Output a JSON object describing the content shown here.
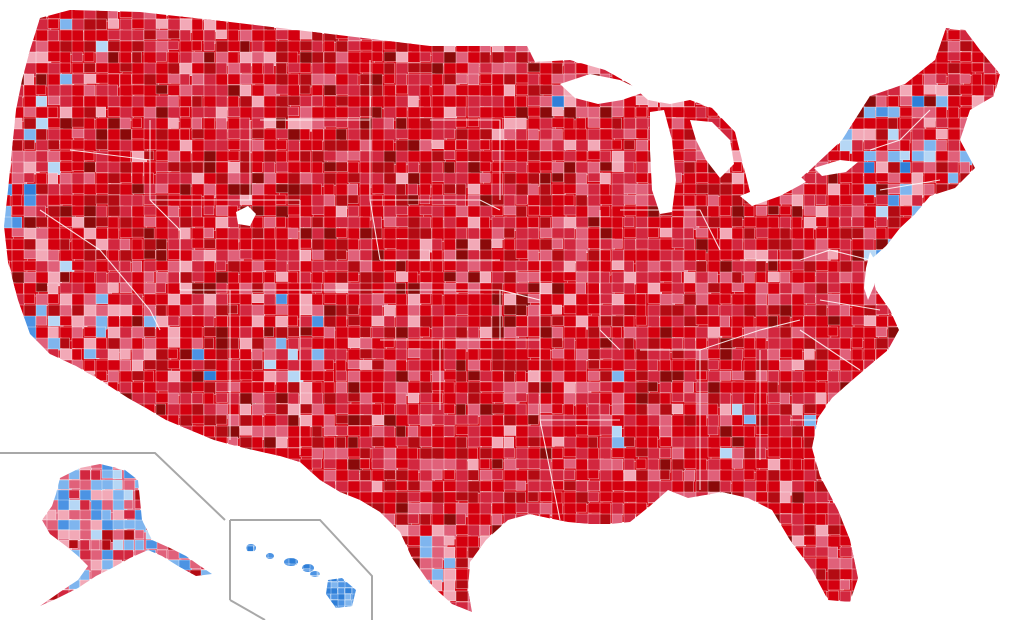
{
  "legend_colors": {
    "red_darkest": "#8a0a0a",
    "red_dark": "#b30b13",
    "red": "#d4000f",
    "red_medium": "#d2273f",
    "red_light": "#e0617a",
    "red_pale": "#f2a9b7",
    "blue_pale": "#b6d7f5",
    "blue_light": "#7fb5ee",
    "blue": "#4c93e3",
    "blue_medium": "#2f7fd8",
    "blue_dark": "#1b5fc2"
  },
  "map_data": {
    "mainland": {
      "land_weights": {
        "red_darkest": 6,
        "red_dark": 14,
        "red": 40,
        "red_medium": 22,
        "red_light": 12,
        "red_pale": 6
      },
      "coastal_blue_weights": {
        "blue_pale": 8,
        "blue_light": 12,
        "blue": 8,
        "blue_medium": 4,
        "red_light": 14,
        "red_pale": 10,
        "red_medium": 14,
        "red": 30
      }
    },
    "insets": [
      "alaska",
      "hawaii"
    ]
  }
}
